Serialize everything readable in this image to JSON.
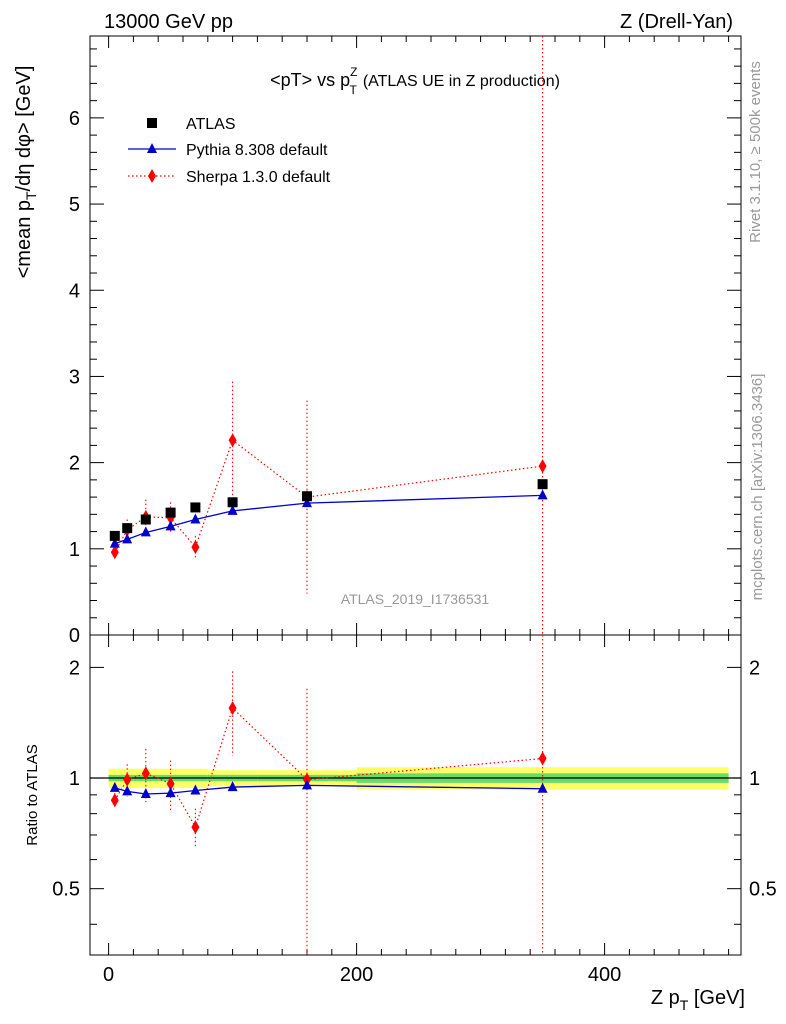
{
  "header": {
    "energy": "13000 GeV pp",
    "process": "Z (Drell-Yan)"
  },
  "side": {
    "rivet": "Rivet 3.1.10, ≥ 500k events",
    "mcplots": "mcplots.cern.ch [arXiv:1306.3436]"
  },
  "colors": {
    "atlas": "#000000",
    "pythia": "#0000cc",
    "sherpa": "#ff0000",
    "band_inner": "#66dd66",
    "band_outer": "#ffff66"
  },
  "chart_data": {
    "type": "scatter",
    "title": "<pT> vs pTZ (ATLAS UE in Z production)",
    "title_parts": {
      "pre": "<pT> vs p",
      "sub": "T",
      "sup": "Z",
      "post": "(ATLAS UE in Z production)"
    },
    "analysis": "ATLAS_2019_I1736531",
    "xlabel": "Z p_T [GeV]",
    "xlabel_parts": {
      "pre": "Z p",
      "sub": "T",
      "post": " [GeV]"
    },
    "xlim": [
      -15,
      510
    ],
    "xticks": [
      0,
      200,
      400
    ],
    "xtick_labels": [
      "0",
      "200",
      "400"
    ],
    "legend": {
      "position": "top-left",
      "entries": [
        "ATLAS",
        "Pythia 8.308 default",
        "Sherpa 1.3.0 default"
      ]
    },
    "main": {
      "ylabel": "<mean p_T/dη dφ> [GeV]",
      "ylabel_parts": {
        "pre": "<mean p",
        "sub": "T",
        "post": "/dη dφ> [GeV]"
      },
      "ylim": [
        0,
        6.95
      ],
      "yticks": [
        0,
        1,
        2,
        3,
        4,
        5,
        6
      ],
      "ytick_labels": [
        "0",
        "1",
        "2",
        "3",
        "4",
        "5",
        "6"
      ],
      "series": [
        {
          "name": "ATLAS",
          "style": "square",
          "x": [
            5,
            15,
            30,
            50,
            70,
            100,
            160,
            350
          ],
          "y": [
            1.15,
            1.24,
            1.34,
            1.42,
            1.48,
            1.54,
            1.61,
            1.75
          ]
        },
        {
          "name": "Pythia 8.308 default",
          "style": "triangle-line",
          "x": [
            5,
            15,
            30,
            50,
            70,
            100,
            160,
            350
          ],
          "y": [
            1.06,
            1.11,
            1.19,
            1.26,
            1.34,
            1.44,
            1.53,
            1.62
          ],
          "yerr": [
            0.01,
            0.01,
            0.01,
            0.01,
            0.01,
            0.01,
            0.01,
            0.02
          ]
        },
        {
          "name": "Sherpa 1.3.0 default",
          "style": "diamond-dotted",
          "x": [
            5,
            15,
            30,
            50,
            70,
            100,
            160,
            350
          ],
          "y": [
            0.96,
            1.22,
            1.37,
            1.36,
            1.02,
            2.26,
            1.6,
            1.96
          ],
          "yerr": [
            0.05,
            0.12,
            0.2,
            0.18,
            0.13,
            0.68,
            1.12,
            6.0
          ]
        }
      ]
    },
    "ratio": {
      "ylabel": "Ratio to ATLAS",
      "ylim": [
        0.33,
        2.45
      ],
      "yticks": [
        0.5,
        1,
        2
      ],
      "ytick_labels": [
        "0.5",
        "1",
        "2"
      ],
      "band_bins": [
        {
          "x0": 0,
          "x1": 10,
          "inner": 0.02,
          "outer": 0.06
        },
        {
          "x0": 10,
          "x1": 20,
          "inner": 0.02,
          "outer": 0.06
        },
        {
          "x0": 20,
          "x1": 40,
          "inner": 0.02,
          "outer": 0.06
        },
        {
          "x0": 40,
          "x1": 60,
          "inner": 0.02,
          "outer": 0.06
        },
        {
          "x0": 60,
          "x1": 80,
          "inner": 0.02,
          "outer": 0.06
        },
        {
          "x0": 80,
          "x1": 120,
          "inner": 0.02,
          "outer": 0.05
        },
        {
          "x0": 120,
          "x1": 200,
          "inner": 0.02,
          "outer": 0.05
        },
        {
          "x0": 200,
          "x1": 500,
          "inner": 0.03,
          "outer": 0.07
        }
      ],
      "series": [
        {
          "name": "Pythia 8.308 default",
          "style": "triangle-line",
          "x": [
            5,
            15,
            30,
            50,
            70,
            100,
            160,
            350
          ],
          "y": [
            0.94,
            0.92,
            0.905,
            0.91,
            0.925,
            0.945,
            0.955,
            0.935
          ],
          "yerr": [
            0.01,
            0.01,
            0.01,
            0.01,
            0.01,
            0.01,
            0.01,
            0.02
          ]
        },
        {
          "name": "Sherpa 1.3.0 default",
          "style": "diamond-dotted",
          "x": [
            5,
            15,
            30,
            50,
            70,
            100,
            160,
            350
          ],
          "y": [
            0.87,
            0.99,
            1.03,
            0.965,
            0.735,
            1.55,
            0.99,
            1.13
          ],
          "yerr": [
            0.04,
            0.1,
            0.17,
            0.15,
            0.09,
            0.4,
            0.76,
            4.0
          ]
        }
      ]
    }
  }
}
